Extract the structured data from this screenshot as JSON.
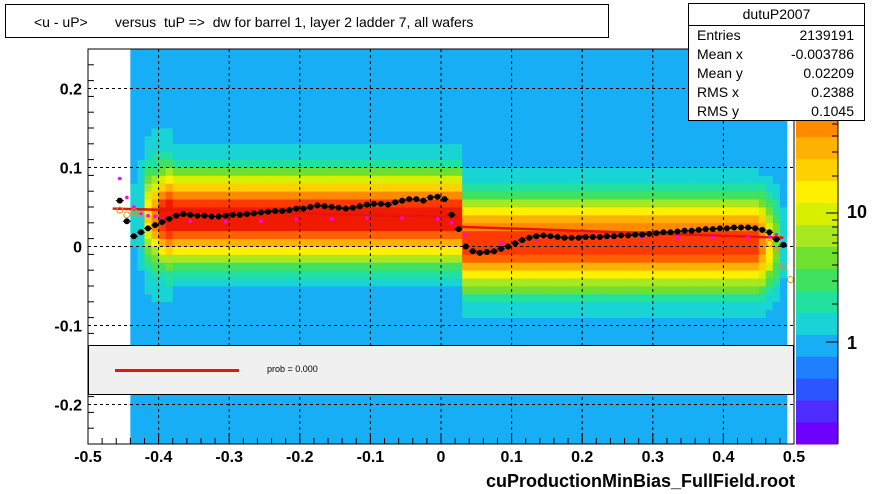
{
  "title": "<u - uP>       versus  tuP =>  dw for barrel 1, layer 2 ladder 7, all wafers",
  "stats": {
    "name": "dutuP2007",
    "rows": [
      {
        "label": "Entries",
        "value": "2139191"
      },
      {
        "label": "Mean x",
        "value": "-0.003786"
      },
      {
        "label": "Mean y",
        "value": "0.02209"
      },
      {
        "label": "RMS x",
        "value": "0.2388"
      },
      {
        "label": "RMS y",
        "value": "0.1045"
      }
    ]
  },
  "fit_box": {
    "text": "prob = 0.000"
  },
  "file_label": "cuProductionMinBias_FullField.root",
  "colorbar": {
    "tick_labels": [
      "1",
      "10"
    ],
    "scale": "log"
  },
  "colors": {
    "fit_line": "#e8130b",
    "profile_points": "#000000",
    "secondary_points": "#ff00ff",
    "outline_points": "#ff8800",
    "tertiary_points": "#3a5cff"
  },
  "chart_data": {
    "type": "heatmap",
    "title": "<u - uP>       versus  tuP =>  dw for barrel 1, layer 2 ladder 7, all wafers",
    "xlim": [
      -0.5,
      0.5
    ],
    "ylim": [
      -0.25,
      0.25
    ],
    "x_ticks": [
      "-0.5",
      "-0.4",
      "-0.3",
      "-0.2",
      "-0.1",
      "0",
      "0.1",
      "0.2",
      "0.3",
      "0.4",
      "0.5"
    ],
    "y_ticks": [
      "-0.2",
      "-0.1",
      "0",
      "0.1",
      "0.2"
    ],
    "grid": true,
    "profile_mean": {
      "x": [
        -0.455,
        -0.445,
        -0.435,
        -0.425,
        -0.415,
        -0.405,
        -0.395,
        -0.385,
        -0.375,
        -0.365,
        -0.355,
        -0.345,
        -0.335,
        -0.325,
        -0.315,
        -0.305,
        -0.295,
        -0.285,
        -0.275,
        -0.265,
        -0.255,
        -0.245,
        -0.235,
        -0.225,
        -0.215,
        -0.205,
        -0.195,
        -0.185,
        -0.175,
        -0.165,
        -0.155,
        -0.145,
        -0.135,
        -0.125,
        -0.115,
        -0.105,
        -0.095,
        -0.085,
        -0.075,
        -0.065,
        -0.055,
        -0.045,
        -0.035,
        -0.025,
        -0.015,
        -0.005,
        0.005,
        0.015,
        0.025,
        0.035,
        0.045,
        0.055,
        0.065,
        0.075,
        0.085,
        0.095,
        0.105,
        0.115,
        0.125,
        0.135,
        0.145,
        0.155,
        0.165,
        0.175,
        0.185,
        0.195,
        0.205,
        0.215,
        0.225,
        0.235,
        0.245,
        0.255,
        0.265,
        0.275,
        0.285,
        0.295,
        0.305,
        0.315,
        0.325,
        0.335,
        0.345,
        0.355,
        0.365,
        0.375,
        0.385,
        0.395,
        0.405,
        0.415,
        0.425,
        0.435,
        0.445,
        0.455,
        0.465,
        0.475,
        0.485
      ],
      "y": [
        0.058,
        0.032,
        0.013,
        0.018,
        0.023,
        0.027,
        0.031,
        0.035,
        0.039,
        0.041,
        0.04,
        0.039,
        0.039,
        0.038,
        0.038,
        0.039,
        0.04,
        0.04,
        0.041,
        0.042,
        0.043,
        0.044,
        0.045,
        0.045,
        0.046,
        0.048,
        0.048,
        0.05,
        0.052,
        0.051,
        0.05,
        0.049,
        0.048,
        0.049,
        0.051,
        0.053,
        0.054,
        0.054,
        0.053,
        0.056,
        0.058,
        0.06,
        0.06,
        0.058,
        0.062,
        0.063,
        0.06,
        0.04,
        0.022,
        0.0,
        -0.006,
        -0.008,
        -0.007,
        -0.006,
        -0.003,
        0.0,
        0.004,
        0.008,
        0.011,
        0.013,
        0.014,
        0.013,
        0.012,
        0.011,
        0.011,
        0.011,
        0.012,
        0.012,
        0.012,
        0.013,
        0.013,
        0.014,
        0.014,
        0.015,
        0.015,
        0.016,
        0.017,
        0.018,
        0.018,
        0.019,
        0.02,
        0.02,
        0.021,
        0.022,
        0.022,
        0.023,
        0.023,
        0.024,
        0.024,
        0.024,
        0.023,
        0.021,
        0.018,
        0.009,
        0.002
      ]
    },
    "secondary_points": {
      "x": [
        -0.455,
        -0.445,
        -0.435,
        -0.425,
        -0.415,
        -0.405,
        -0.395,
        -0.355,
        -0.305,
        -0.255,
        -0.205,
        -0.155,
        -0.105,
        -0.055,
        -0.005,
        0.015,
        0.035,
        0.085,
        0.135,
        0.185,
        0.235,
        0.285,
        0.335,
        0.385,
        0.435,
        0.465,
        0.475
      ],
      "y": [
        0.086,
        0.062,
        0.05,
        0.042,
        0.039,
        0.038,
        0.034,
        0.032,
        0.031,
        0.032,
        0.034,
        0.035,
        0.036,
        0.036,
        0.035,
        0.03,
        0.015,
        0.004,
        0.009,
        0.011,
        0.01,
        0.011,
        0.011,
        0.011,
        0.011,
        0.013,
        0.015
      ]
    },
    "outline_points": {
      "x": [
        -0.455,
        -0.445,
        -0.435,
        -0.425,
        0.465,
        0.475,
        0.485,
        0.495
      ],
      "y": [
        0.046,
        0.04,
        0.044,
        0.04,
        0.004,
        -0.005,
        -0.025,
        -0.042
      ]
    },
    "fit_segments": [
      {
        "x": [
          -0.465,
          0.025
        ],
        "y": [
          0.048,
          0.037
        ]
      },
      {
        "x": [
          0.025,
          0.485
        ],
        "y": [
          0.025,
          0.011
        ]
      }
    ]
  }
}
